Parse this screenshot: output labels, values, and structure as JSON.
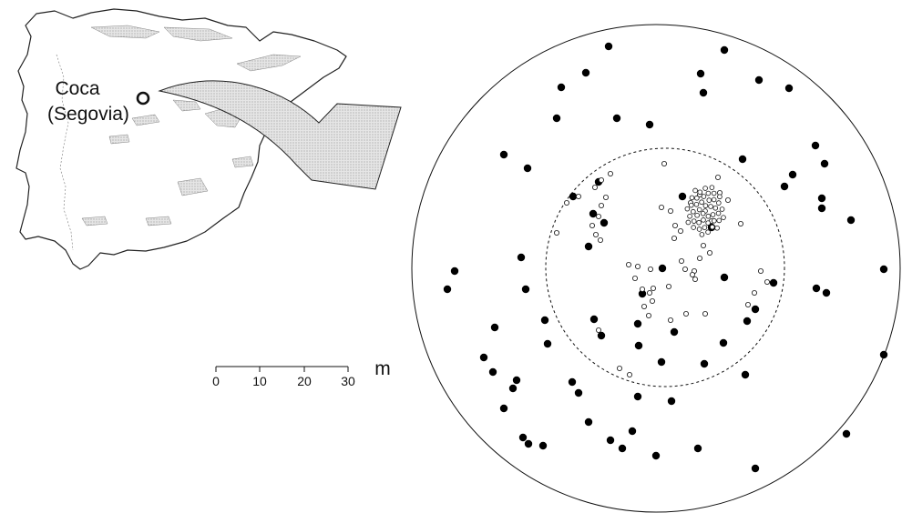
{
  "location": {
    "name": "Coca",
    "province": "(Segovia)"
  },
  "scale_bar": {
    "ticks": [
      "0",
      "10",
      "20",
      "30"
    ],
    "unit": "m"
  },
  "colors": {
    "ink": "#111111",
    "arrow_fill": "#cfcfcf",
    "map_stroke": "#222222"
  },
  "legend_symbols": [
    "filled-circle",
    "open-circle"
  ]
}
